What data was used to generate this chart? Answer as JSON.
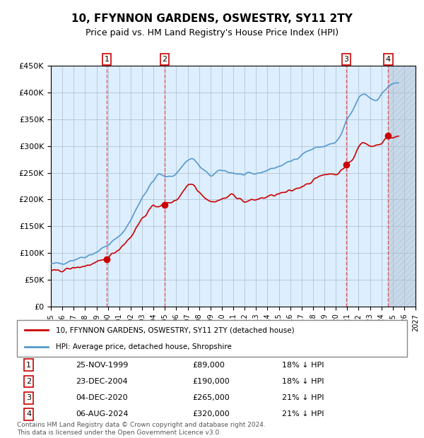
{
  "title": "10, FFYNNON GARDENS, OSWESTRY, SY11 2TY",
  "subtitle": "Price paid vs. HM Land Registry's House Price Index (HPI)",
  "x_start_year": 1995,
  "x_end_year": 2027,
  "y_min": 0,
  "y_max": 450000,
  "y_ticks": [
    0,
    50000,
    100000,
    150000,
    200000,
    250000,
    300000,
    350000,
    400000,
    450000
  ],
  "y_tick_labels": [
    "£0",
    "£50K",
    "£100K",
    "£150K",
    "£200K",
    "£250K",
    "£300K",
    "£350K",
    "£400K",
    "£450K"
  ],
  "sales": [
    {
      "num": 1,
      "date_dec": 1999.9,
      "price": 89000,
      "label": "25-NOV-1999",
      "pct": "18%"
    },
    {
      "num": 2,
      "date_dec": 2004.98,
      "price": 190000,
      "label": "23-DEC-2004",
      "pct": "18%"
    },
    {
      "num": 3,
      "date_dec": 2020.92,
      "price": 265000,
      "label": "04-DEC-2020",
      "pct": "21%"
    },
    {
      "num": 4,
      "date_dec": 2024.6,
      "price": 320000,
      "label": "06-AUG-2024",
      "pct": "21%"
    }
  ],
  "red_line_color": "#cc0000",
  "blue_line_color": "#5599cc",
  "sale_dot_color": "#cc0000",
  "vline_color": "#dd4444",
  "shade_color": "#ddeeff",
  "hatch_color": "#bbccdd",
  "grid_color": "#aabbcc",
  "background_color": "#ffffff",
  "footer_text": "Contains HM Land Registry data © Crown copyright and database right 2024.\nThis data is licensed under the Open Government Licence v3.0.",
  "legend_red_label": "10, FFYNNON GARDENS, OSWESTRY, SY11 2TY (detached house)",
  "legend_blue_label": "HPI: Average price, detached house, Shropshire"
}
